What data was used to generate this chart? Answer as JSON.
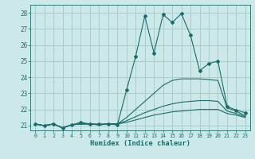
{
  "xlabel": "Humidex (Indice chaleur)",
  "background_color": "#cce8e8",
  "grid_color": "#aacccc",
  "line_color": "#1a6b6b",
  "xlim": [
    -0.5,
    23.5
  ],
  "ylim": [
    20.7,
    28.5
  ],
  "yticks": [
    21,
    22,
    23,
    24,
    25,
    26,
    27,
    28
  ],
  "xticks": [
    0,
    1,
    2,
    3,
    4,
    5,
    6,
    7,
    8,
    9,
    10,
    11,
    12,
    13,
    14,
    15,
    16,
    17,
    18,
    19,
    20,
    21,
    22,
    23
  ],
  "lines": [
    {
      "x": [
        0,
        1,
        2,
        3,
        4,
        5,
        6,
        7,
        8,
        9,
        10,
        11,
        12,
        13,
        14,
        15,
        16,
        17,
        18,
        19,
        20,
        21,
        22,
        23
      ],
      "y": [
        21.1,
        21.0,
        21.1,
        20.85,
        21.05,
        21.2,
        21.1,
        21.1,
        21.1,
        21.05,
        23.2,
        25.3,
        27.8,
        25.5,
        27.9,
        27.4,
        27.95,
        26.6,
        24.4,
        24.85,
        25.0,
        22.2,
        21.95,
        21.8
      ],
      "marker": "D",
      "markersize": 2.0
    },
    {
      "x": [
        0,
        1,
        2,
        3,
        4,
        5,
        6,
        7,
        8,
        9,
        10,
        11,
        12,
        13,
        14,
        15,
        16,
        17,
        18,
        19,
        20,
        21,
        22,
        23
      ],
      "y": [
        21.1,
        21.0,
        21.1,
        20.85,
        21.05,
        21.1,
        21.1,
        21.05,
        21.1,
        21.1,
        21.5,
        22.0,
        22.5,
        23.0,
        23.5,
        23.8,
        23.9,
        23.9,
        23.9,
        23.85,
        23.8,
        22.1,
        21.9,
        21.6
      ],
      "marker": null,
      "markersize": 0
    },
    {
      "x": [
        0,
        1,
        2,
        3,
        4,
        5,
        6,
        7,
        8,
        9,
        10,
        11,
        12,
        13,
        14,
        15,
        16,
        17,
        18,
        19,
        20,
        21,
        22,
        23
      ],
      "y": [
        21.1,
        21.0,
        21.1,
        20.85,
        21.05,
        21.1,
        21.1,
        21.05,
        21.1,
        21.1,
        21.3,
        21.55,
        21.8,
        22.0,
        22.2,
        22.35,
        22.45,
        22.5,
        22.55,
        22.55,
        22.5,
        21.9,
        21.75,
        21.55
      ],
      "marker": null,
      "markersize": 0
    },
    {
      "x": [
        0,
        1,
        2,
        3,
        4,
        5,
        6,
        7,
        8,
        9,
        10,
        11,
        12,
        13,
        14,
        15,
        16,
        17,
        18,
        19,
        20,
        21,
        22,
        23
      ],
      "y": [
        21.1,
        21.0,
        21.1,
        20.85,
        21.05,
        21.1,
        21.1,
        21.05,
        21.1,
        21.1,
        21.2,
        21.35,
        21.5,
        21.65,
        21.75,
        21.85,
        21.9,
        21.95,
        22.0,
        22.0,
        22.0,
        21.75,
        21.65,
        21.5
      ],
      "marker": null,
      "markersize": 0
    }
  ]
}
